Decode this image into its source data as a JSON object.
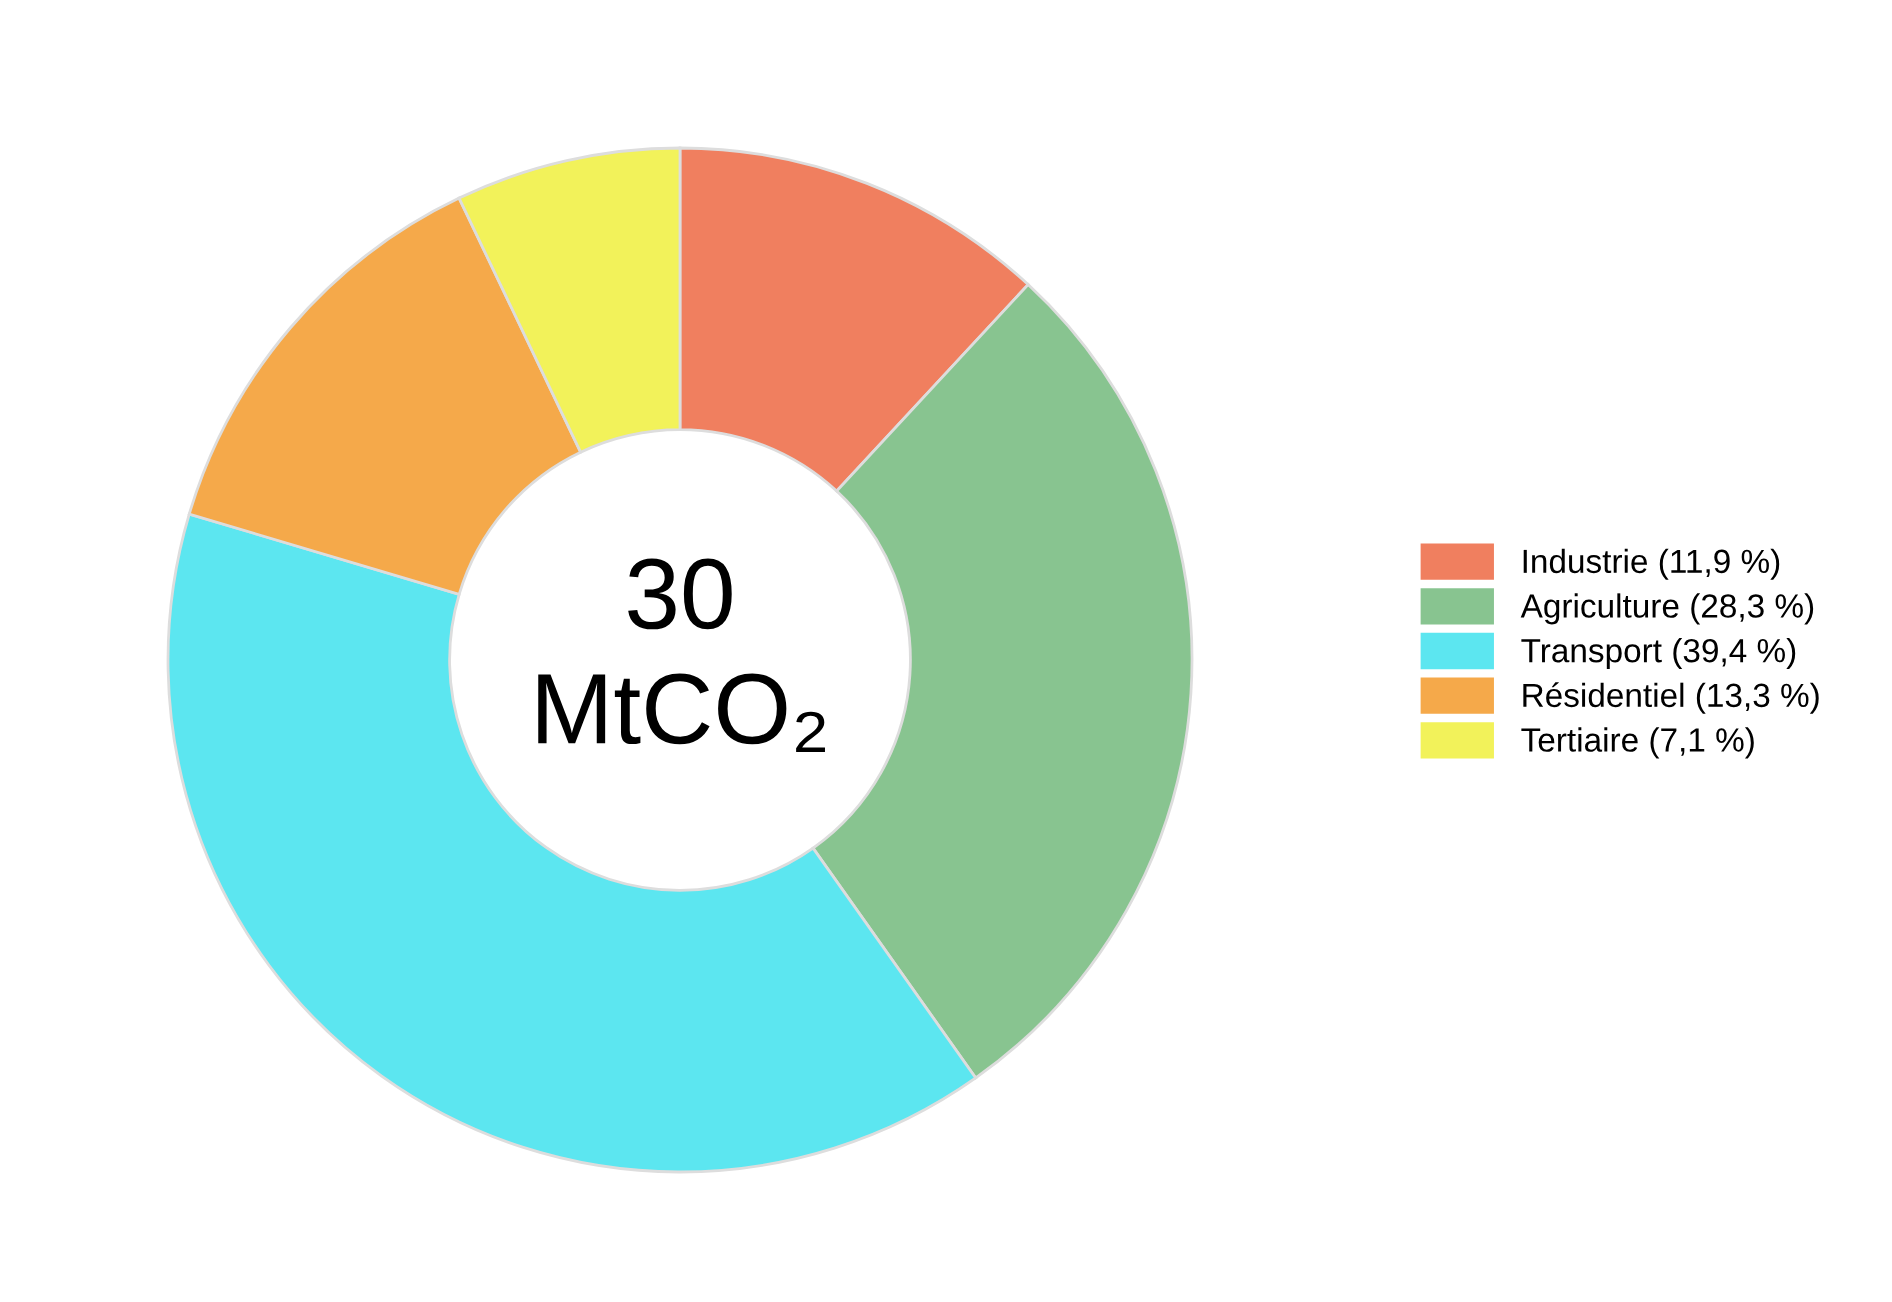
{
  "chart_data": {
    "type": "donut",
    "categories": [
      "Industrie (11,9 %)",
      "Agriculture (28,3 %)",
      "Transport (39,4 %)",
      "Résidentiel (13,3 %)",
      "Tertiaire (7,1 %)"
    ],
    "values": [
      11.9,
      28.3,
      39.4,
      13.3,
      7.1
    ],
    "colors": [
      "#f07f5f",
      "#88c490",
      "#5ce6f0",
      "#f5a94a",
      "#f2f25a"
    ],
    "annotations": [
      "30\nMtCO₂"
    ],
    "legend": "right"
  }
}
